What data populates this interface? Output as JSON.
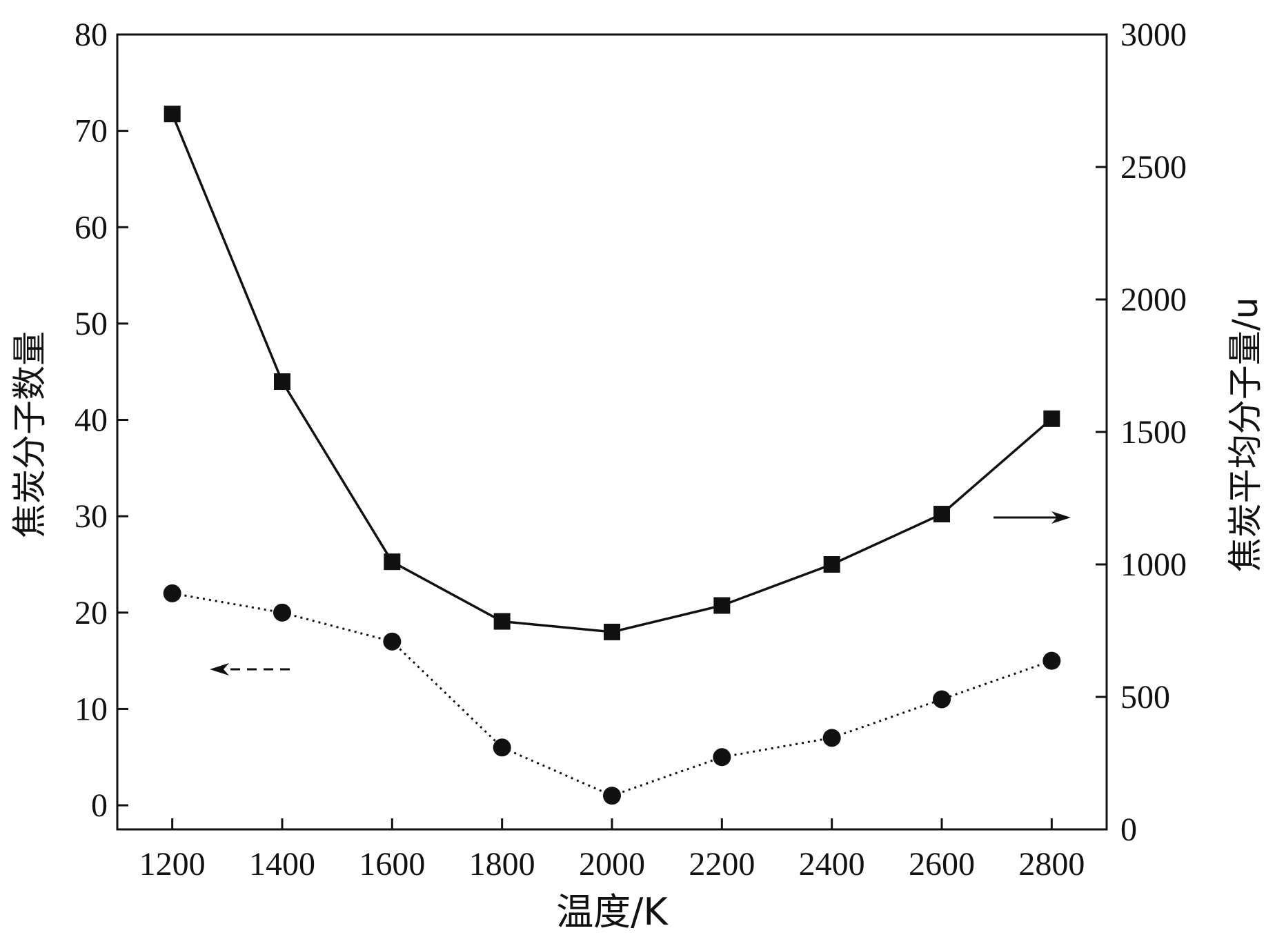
{
  "chart_data": {
    "type": "line",
    "title": "",
    "xlabel": "温度/K",
    "ylabel_left": "焦炭分子数量",
    "ylabel_right": "焦炭平均分子量/u",
    "x": [
      1200,
      1400,
      1600,
      1800,
      2000,
      2200,
      2400,
      2600,
      2800
    ],
    "xlim": [
      1100,
      2900
    ],
    "ylim_left": [
      -2.5,
      80
    ],
    "ylim_right": [
      0,
      3000
    ],
    "xticks": [
      "1200",
      "1400",
      "1600",
      "1800",
      "2000",
      "2200",
      "2400",
      "2600",
      "2800"
    ],
    "yticks_left": [
      "0",
      "10",
      "20",
      "30",
      "40",
      "50",
      "60",
      "70",
      "80"
    ],
    "yticks_right": [
      "0",
      "500",
      "1000",
      "1500",
      "2000",
      "2500",
      "3000"
    ],
    "grid": false,
    "series": [
      {
        "axis": "right",
        "marker": "square",
        "line_style": "solid",
        "color": "#111111",
        "values": [
          2700,
          1690,
          1010,
          785,
          745,
          845,
          1000,
          1190,
          1550
        ]
      },
      {
        "axis": "left",
        "marker": "circle",
        "line_style": "dotted",
        "color": "#111111",
        "values": [
          22,
          20,
          17,
          6,
          1,
          5,
          7,
          11,
          15
        ]
      }
    ],
    "annotations": [
      {
        "type": "arrow",
        "direction": "right",
        "line_style": "solid",
        "refers_to": "right-axis",
        "near": "right side"
      },
      {
        "type": "arrow",
        "direction": "left",
        "line_style": "dashed",
        "refers_to": "left-axis",
        "near": "left side"
      }
    ]
  }
}
